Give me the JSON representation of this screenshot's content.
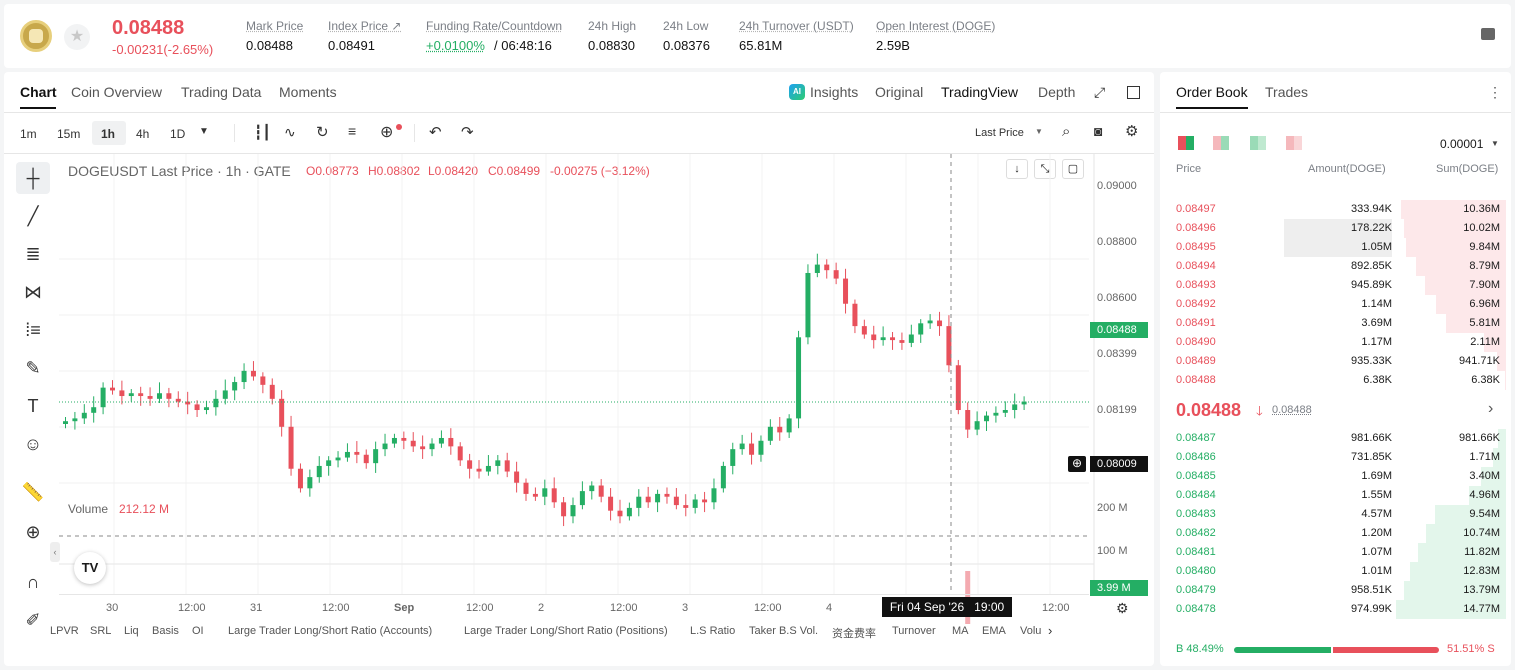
{
  "header": {
    "price": "0.08488",
    "change": "-0.00231(-2.65%)",
    "stats": [
      {
        "label": "Mark Price",
        "value": "0.08488"
      },
      {
        "label": "Index Price ↗",
        "value": "0.08491"
      },
      {
        "label": "Funding Rate/Countdown",
        "value": "+0.0100%",
        "value2": "/ 06:48:16"
      },
      {
        "label": "24h High",
        "value": "0.08830"
      },
      {
        "label": "24h Low",
        "value": "0.08376"
      },
      {
        "label": "24h Turnover (USDT)",
        "value": "65.81M"
      },
      {
        "label": "Open Interest (DOGE)",
        "value": "2.59B"
      }
    ]
  },
  "chart_tabs": [
    "Chart",
    "Coin Overview",
    "Trading Data",
    "Moments"
  ],
  "view_tabs": [
    "Insights",
    "Original",
    "TradingView",
    "Depth"
  ],
  "intervals": [
    "1m",
    "15m",
    "1h",
    "4h",
    "1D"
  ],
  "last_price_select": "Last Price",
  "legend": {
    "symbol": "DOGEUSDT Last Price · 1h · GATE",
    "o": "O0.08773",
    "h": "H0.08802",
    "l": "L0.08420",
    "c": "C0.08499",
    "chg": "-0.00275 (−3.12%)"
  },
  "volume_label": "Volume",
  "volume_value": "212.12 M",
  "price_axis": [
    "0.09000",
    "0.08800",
    "0.08600",
    "0.08399",
    "0.08199"
  ],
  "price_tag": "0.08488",
  "cross_tag": "0.08009",
  "vol_axis": [
    "200 M",
    "100 M"
  ],
  "vol_tag": "3.99 M",
  "time_axis": [
    "30",
    "12:00",
    "31",
    "12:00",
    "Sep",
    "12:00",
    "2",
    "12:00",
    "3",
    "12:00",
    "4",
    "12:00"
  ],
  "crosshair_time": "Fri 04 Sep '26   19:00",
  "indicators": [
    "LPVR",
    "SRL",
    "Liq",
    "Basis",
    "OI",
    "Large Trader Long/Short Ratio (Accounts)",
    "Large Trader Long/Short Ratio (Positions)",
    "L.S Ratio",
    "Taker B.S Vol.",
    "资金费率",
    "Turnover",
    "MA",
    "EMA",
    "Volu"
  ],
  "book": {
    "tabs": [
      "Order Book",
      "Trades"
    ],
    "precision": "0.00001",
    "headers": [
      "Price",
      "Amount(DOGE)",
      "Sum(DOGE)"
    ],
    "asks": [
      {
        "price": "0.08497",
        "amount": "333.94K",
        "sum": "10.36M",
        "depth": 0.7,
        "amt": 0.0
      },
      {
        "price": "0.08496",
        "amount": "178.22K",
        "sum": "10.02M",
        "depth": 0.68,
        "amt": 0.72
      },
      {
        "price": "0.08495",
        "amount": "1.05M",
        "sum": "9.84M",
        "depth": 0.67,
        "amt": 0.72
      },
      {
        "price": "0.08494",
        "amount": "892.85K",
        "sum": "8.79M",
        "depth": 0.6,
        "amt": 0
      },
      {
        "price": "0.08493",
        "amount": "945.89K",
        "sum": "7.90M",
        "depth": 0.54,
        "amt": 0
      },
      {
        "price": "0.08492",
        "amount": "1.14M",
        "sum": "6.96M",
        "depth": 0.47,
        "amt": 0
      },
      {
        "price": "0.08491",
        "amount": "3.69M",
        "sum": "5.81M",
        "depth": 0.4,
        "amt": 0
      },
      {
        "price": "0.08490",
        "amount": "1.17M",
        "sum": "2.11M",
        "depth": 0.15,
        "amt": 0
      },
      {
        "price": "0.08489",
        "amount": "935.33K",
        "sum": "941.71K",
        "depth": 0.06,
        "amt": 0
      },
      {
        "price": "0.08488",
        "amount": "6.38K",
        "sum": "6.38K",
        "depth": 0.01,
        "amt": 0
      }
    ],
    "mid_price": "0.08488",
    "mid_mark": "0.08488",
    "bids": [
      {
        "price": "0.08487",
        "amount": "981.66K",
        "sum": "981.66K",
        "depth": 0.07
      },
      {
        "price": "0.08486",
        "amount": "731.85K",
        "sum": "1.71M",
        "depth": 0.12
      },
      {
        "price": "0.08485",
        "amount": "1.69M",
        "sum": "3.40M",
        "depth": 0.23
      },
      {
        "price": "0.08484",
        "amount": "1.55M",
        "sum": "4.96M",
        "depth": 0.34
      },
      {
        "price": "0.08483",
        "amount": "4.57M",
        "sum": "9.54M",
        "depth": 0.65
      },
      {
        "price": "0.08482",
        "amount": "1.20M",
        "sum": "10.74M",
        "depth": 0.73
      },
      {
        "price": "0.08481",
        "amount": "1.07M",
        "sum": "11.82M",
        "depth": 0.8
      },
      {
        "price": "0.08480",
        "amount": "1.01M",
        "sum": "12.83M",
        "depth": 0.87
      },
      {
        "price": "0.08479",
        "amount": "958.51K",
        "sum": "13.79M",
        "depth": 0.93
      },
      {
        "price": "0.08478",
        "amount": "974.99K",
        "sum": "14.77M",
        "depth": 1.0
      }
    ],
    "buy_pct": "B 48.49%",
    "sell_pct": "51.51% S",
    "buy_ratio": 0.4849
  },
  "colors": {
    "up": "#24ae64",
    "down": "#e8505b"
  }
}
